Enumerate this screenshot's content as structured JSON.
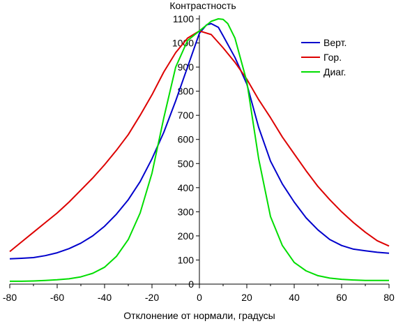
{
  "chart_data": {
    "type": "line",
    "title": "Контрастность",
    "xlabel": "Отклонение от нормали, градусы",
    "ylabel": "",
    "xlim": [
      -80,
      80
    ],
    "ylim": [
      0,
      1100
    ],
    "x_ticks": [
      -80,
      -60,
      -40,
      -20,
      0,
      20,
      40,
      60,
      80
    ],
    "y_ticks": [
      0,
      100,
      200,
      300,
      400,
      500,
      600,
      700,
      800,
      900,
      1000,
      1100
    ],
    "grid": false,
    "legend": "top-right",
    "series": [
      {
        "name": "Верт.",
        "color": "#0000cc",
        "x": [
          -80,
          -75,
          -70,
          -65,
          -60,
          -55,
          -50,
          -45,
          -40,
          -35,
          -30,
          -25,
          -20,
          -15,
          -10,
          -5,
          0,
          3,
          5,
          8,
          10,
          15,
          20,
          25,
          30,
          35,
          40,
          45,
          50,
          55,
          60,
          65,
          70,
          75,
          80
        ],
        "y": [
          105,
          107,
          110,
          118,
          130,
          147,
          170,
          200,
          240,
          290,
          350,
          425,
          520,
          630,
          760,
          900,
          1040,
          1075,
          1080,
          1065,
          1030,
          940,
          830,
          650,
          510,
          415,
          340,
          275,
          225,
          185,
          160,
          145,
          138,
          132,
          128
        ]
      },
      {
        "name": "Гор.",
        "color": "#dd0000",
        "x": [
          -80,
          -75,
          -70,
          -65,
          -60,
          -55,
          -50,
          -45,
          -40,
          -35,
          -30,
          -25,
          -20,
          -15,
          -10,
          -5,
          0,
          5,
          10,
          15,
          20,
          25,
          30,
          35,
          40,
          45,
          50,
          55,
          60,
          65,
          70,
          75,
          80
        ],
        "y": [
          135,
          175,
          215,
          255,
          295,
          340,
          390,
          440,
          495,
          555,
          620,
          700,
          785,
          880,
          960,
          1020,
          1050,
          1035,
          980,
          920,
          850,
          765,
          690,
          610,
          540,
          470,
          405,
          350,
          300,
          255,
          215,
          180,
          158
        ]
      },
      {
        "name": "Диаг.",
        "color": "#00dd00",
        "x": [
          -80,
          -75,
          -70,
          -65,
          -60,
          -55,
          -50,
          -45,
          -40,
          -35,
          -30,
          -25,
          -20,
          -15,
          -10,
          -5,
          0,
          5,
          8,
          10,
          12,
          15,
          20,
          25,
          30,
          35,
          40,
          45,
          50,
          55,
          60,
          65,
          70,
          75,
          80
        ],
        "y": [
          12,
          12,
          13,
          15,
          18,
          22,
          30,
          45,
          70,
          115,
          185,
          295,
          460,
          690,
          900,
          1010,
          1050,
          1090,
          1100,
          1098,
          1080,
          1020,
          840,
          520,
          280,
          160,
          90,
          55,
          35,
          25,
          20,
          17,
          15,
          15,
          15
        ]
      }
    ]
  }
}
